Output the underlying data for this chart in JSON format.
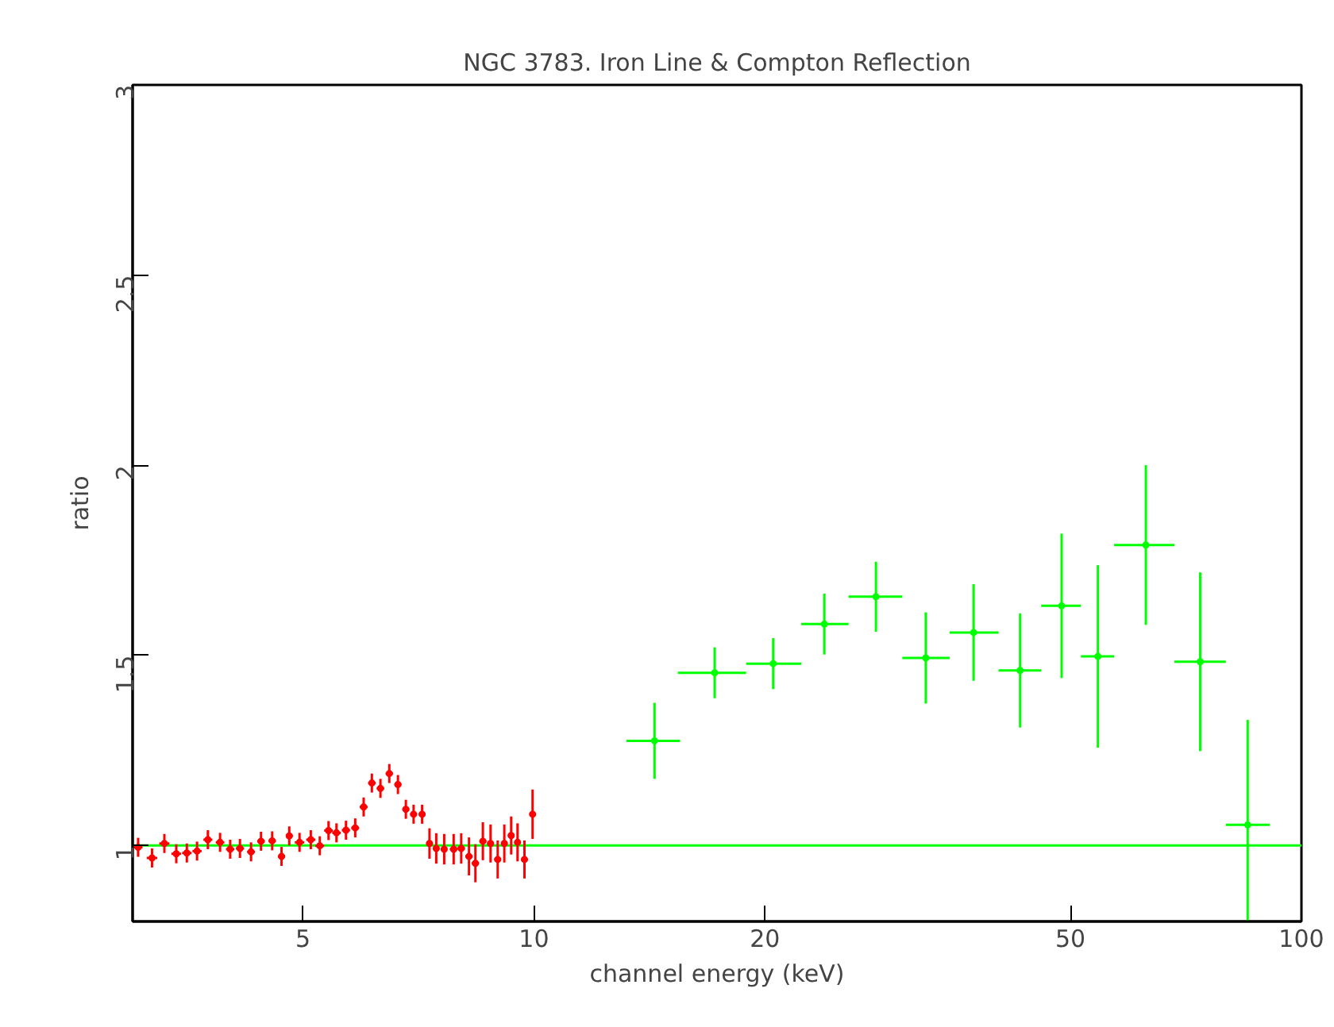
{
  "chart_data": {
    "type": "scatter",
    "title": "NGC 3783. Iron Line & Compton Reflection",
    "xlabel": "channel energy (keV)",
    "ylabel": "ratio",
    "log": "x",
    "marker": "none",
    "xlim": [
      3,
      100
    ],
    "xticks": [
      5,
      10,
      20,
      50,
      100
    ],
    "ylim": [
      0.8,
      3
    ],
    "yticks": [
      1,
      1.5,
      2,
      2.5,
      3
    ],
    "series": [
      {
        "color": "#ff0000",
        "x": [
          3.05,
          3.18,
          3.3,
          3.42,
          3.53,
          3.64,
          3.76,
          3.9,
          4.02,
          4.14,
          4.28,
          4.41,
          4.56,
          4.69,
          4.8,
          4.95,
          5.12,
          5.26,
          5.4,
          5.53,
          5.69,
          5.85,
          6.0,
          6.15,
          6.31,
          6.48,
          6.65,
          6.81,
          6.97,
          7.15,
          7.31,
          7.46,
          7.64,
          7.86,
          8.04,
          8.23,
          8.39,
          8.58,
          8.78,
          8.97,
          9.15,
          9.34,
          9.52,
          9.72,
          9.96
        ],
        "values": [
          0.995,
          0.967,
          1.005,
          0.978,
          0.98,
          0.985,
          1.015,
          1.008,
          0.99,
          0.992,
          0.983,
          1.011,
          1.012,
          0.971,
          1.025,
          1.008,
          1.015,
          0.999,
          1.039,
          1.033,
          1.04,
          1.046,
          1.101,
          1.164,
          1.15,
          1.189,
          1.16,
          1.095,
          1.082,
          1.082,
          1.005,
          0.992,
          0.99,
          0.99,
          0.992,
          0.971,
          0.953,
          1.011,
          1.005,
          0.963,
          1.005,
          1.026,
          1.008,
          0.963,
          1.082
        ],
        "errors": [
          0.025,
          0.025,
          0.025,
          0.025,
          0.025,
          0.025,
          0.025,
          0.025,
          0.025,
          0.025,
          0.025,
          0.025,
          0.025,
          0.025,
          0.025,
          0.025,
          0.025,
          0.025,
          0.025,
          0.025,
          0.025,
          0.025,
          0.025,
          0.025,
          0.025,
          0.025,
          0.025,
          0.025,
          0.025,
          0.025,
          0.04,
          0.04,
          0.04,
          0.04,
          0.04,
          0.05,
          0.05,
          0.05,
          0.05,
          0.05,
          0.05,
          0.05,
          0.05,
          0.05,
          0.065
        ],
        "xerrors": [
          0.04,
          0.05,
          0.05,
          0.05,
          0.05,
          0.05,
          0.05,
          0.05,
          0.05,
          0.05,
          0.05,
          0.05,
          0.05,
          0.05,
          0.05,
          0.07,
          0.07,
          0.07,
          0.07,
          0.07,
          0.07,
          0.07,
          0.07,
          0.07,
          0.07,
          0.07,
          0.07,
          0.07,
          0.07,
          0.07,
          0.07,
          0.07,
          0.07,
          0.09,
          0.09,
          0.09,
          0.09,
          0.09,
          0.09,
          0.09,
          0.09,
          0.09,
          0.09,
          0.09,
          0.09
        ]
      },
      {
        "color": "#00ff00",
        "x": [
          14.36,
          17.2,
          20.5,
          23.9,
          27.9,
          32.4,
          37.4,
          43.0,
          48.7,
          54.3,
          62.7,
          73.8,
          85.1
        ],
        "values": [
          1.275,
          1.454,
          1.478,
          1.582,
          1.654,
          1.493,
          1.56,
          1.46,
          1.63,
          1.497,
          1.79,
          1.483,
          1.054
        ],
        "errors": [
          0.1,
          0.067,
          0.067,
          0.08,
          0.092,
          0.12,
          0.127,
          0.15,
          0.19,
          0.24,
          0.21,
          0.235,
          [
            0.8,
            1.33
          ]
        ],
        "xerrors": [
          [
            13.2,
            15.5
          ],
          [
            15.4,
            18.9
          ],
          [
            18.9,
            22.3
          ],
          [
            22.3,
            25.7
          ],
          [
            25.7,
            30.2
          ],
          [
            30.2,
            34.8
          ],
          [
            34.8,
            40.3
          ],
          [
            40.3,
            45.8
          ],
          [
            45.8,
            51.6
          ],
          [
            51.6,
            57.0
          ],
          [
            57.0,
            68.3
          ],
          [
            68.3,
            79.7
          ],
          [
            79.7,
            90.9
          ]
        ]
      },
      {
        "type": "line",
        "color": "#00ff00",
        "x": [
          3,
          100
        ],
        "values": [
          1,
          1
        ]
      }
    ]
  }
}
